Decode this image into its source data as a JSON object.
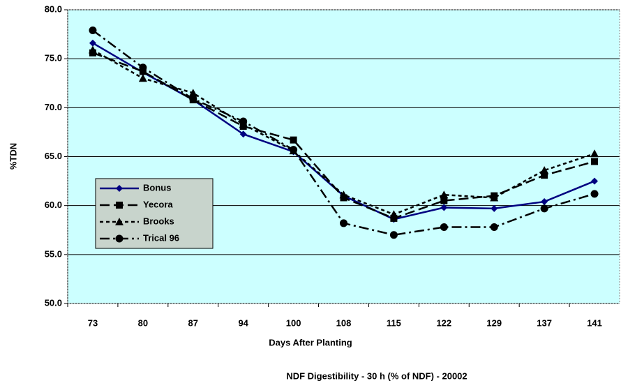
{
  "chart_data": {
    "type": "line",
    "title": "NDF Digestibility - 30 h (% of NDF) - 20002",
    "x_label": "Days After Planting",
    "y_label": "%TDN",
    "categories": [
      "73",
      "80",
      "87",
      "94",
      "100",
      "108",
      "115",
      "122",
      "129",
      "137",
      "141"
    ],
    "ylim": [
      50,
      80
    ],
    "yticks": [
      {
        "value": 50,
        "label": "50.0"
      },
      {
        "value": 55,
        "label": "55.0"
      },
      {
        "value": 60,
        "label": "60.0"
      },
      {
        "value": 65,
        "label": "65.0"
      },
      {
        "value": 70,
        "label": "70.0"
      },
      {
        "value": 75,
        "label": "75.0"
      },
      {
        "value": 80,
        "label": "80.0"
      }
    ],
    "grid": true,
    "series": [
      {
        "name": "Bonus",
        "color": "#000080",
        "marker": "diamond",
        "dash": "none",
        "values": [
          76.6,
          73.6,
          70.8,
          67.3,
          65.5,
          61.0,
          58.6,
          59.8,
          59.7,
          60.4,
          62.5
        ]
      },
      {
        "name": "Yecora",
        "color": "#000000",
        "marker": "square",
        "dash": "14 6",
        "values": [
          75.6,
          73.7,
          70.8,
          68.1,
          66.7,
          60.8,
          58.7,
          60.5,
          61.0,
          63.1,
          64.5
        ]
      },
      {
        "name": "Brooks",
        "color": "#000000",
        "marker": "triangle",
        "dash": "5 4",
        "values": [
          75.9,
          73.0,
          71.5,
          68.3,
          65.6,
          61.1,
          59.1,
          61.1,
          60.8,
          63.6,
          65.3
        ]
      },
      {
        "name": "Trical 96",
        "color": "#000000",
        "marker": "circle",
        "dash": "14 5 3 5",
        "values": [
          77.9,
          74.1,
          70.9,
          68.6,
          65.7,
          58.2,
          57.0,
          57.8,
          57.8,
          59.7,
          61.2
        ]
      }
    ]
  }
}
